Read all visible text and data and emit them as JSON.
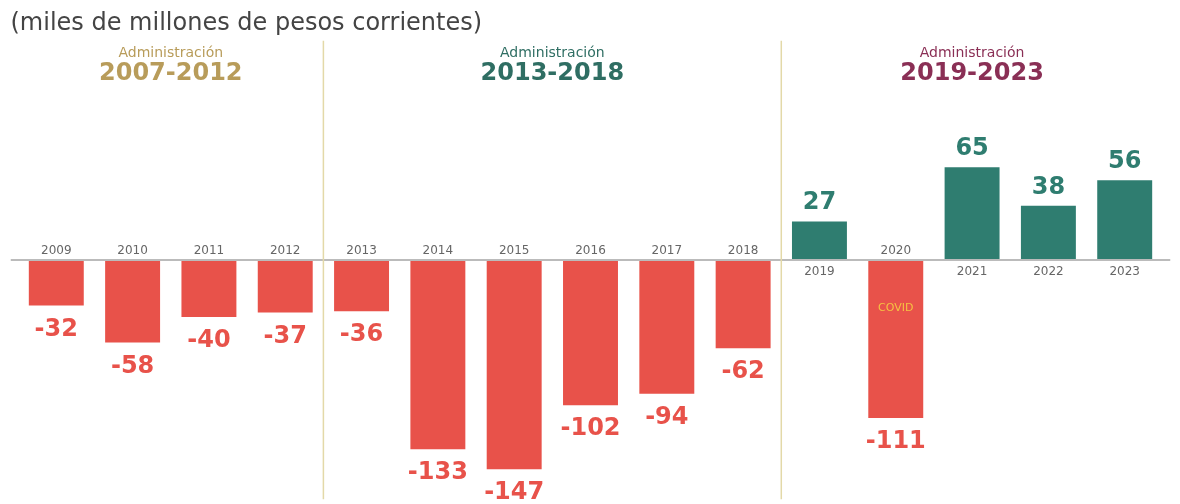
{
  "chart_data": {
    "type": "bar",
    "title": "(miles de millones de pesos corrientes)",
    "categories": [
      "2009",
      "2010",
      "2011",
      "2012",
      "2013",
      "2014",
      "2015",
      "2016",
      "2017",
      "2018",
      "2019",
      "2020",
      "2021",
      "2022",
      "2023"
    ],
    "values": [
      -32,
      -58,
      -40,
      -37,
      -36,
      -133,
      -147,
      -102,
      -94,
      -62,
      27,
      -111,
      65,
      38,
      56
    ],
    "colors": [
      "#e8524a",
      "#e8524a",
      "#e8524a",
      "#e8524a",
      "#e8524a",
      "#e8524a",
      "#e8524a",
      "#e8524a",
      "#e8524a",
      "#e8524a",
      "#2f7d70",
      "#e8524a",
      "#2f7d70",
      "#2f7d70",
      "#2f7d70"
    ],
    "data_labels": true,
    "annotations": [
      "Administración",
      "2007-2012",
      "Administración",
      "2013-2018",
      "Administración",
      "2019-2023",
      "COVID"
    ],
    "grid": false
  }
}
